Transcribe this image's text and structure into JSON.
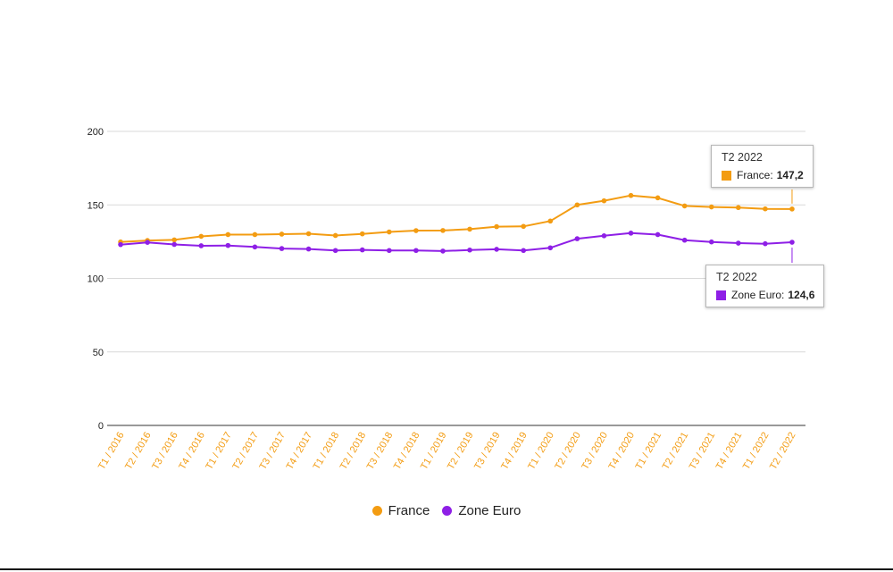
{
  "colors": {
    "france": "#f39c12",
    "zone_euro": "#8e1fe6",
    "grid": "#d9d9d9",
    "tick_label": "#f39c12"
  },
  "chart_data": {
    "type": "line",
    "categories": [
      "T1 / 2016",
      "T2 / 2016",
      "T3 / 2016",
      "T4 / 2016",
      "T1 / 2017",
      "T2 / 2017",
      "T3 / 2017",
      "T4 / 2017",
      "T1 / 2018",
      "T2 / 2018",
      "T3 / 2018",
      "T4 / 2018",
      "T1 / 2019",
      "T2 / 2019",
      "T3 / 2019",
      "T4 / 2019",
      "T1 / 2020",
      "T2 / 2020",
      "T3 / 2020",
      "T4 / 2020",
      "T1 / 2021",
      "T2 / 2021",
      "T3 / 2021",
      "T4 / 2021",
      "T1 / 2022",
      "T2 / 2022"
    ],
    "series": [
      {
        "name": "France",
        "color": "#f39c12",
        "values": [
          124.8,
          125.8,
          126.2,
          128.6,
          129.8,
          129.8,
          130.1,
          130.4,
          129.2,
          130.3,
          131.6,
          132.5,
          132.6,
          133.5,
          135.2,
          135.4,
          139.0,
          150.0,
          152.8,
          156.4,
          154.8,
          149.3,
          148.6,
          148.2,
          147.3,
          147.2
        ]
      },
      {
        "name": "Zone Euro",
        "color": "#8e1fe6",
        "values": [
          123.0,
          124.5,
          123.1,
          122.2,
          122.4,
          121.4,
          120.3,
          120.0,
          119.0,
          119.4,
          119.0,
          119.0,
          118.6,
          119.3,
          119.8,
          119.0,
          120.8,
          127.0,
          129.0,
          130.8,
          129.8,
          126.0,
          124.8,
          124.0,
          123.6,
          124.6
        ]
      }
    ],
    "yticks": [
      0,
      50,
      100,
      150,
      200
    ],
    "ytick_labels": [
      "0",
      "50",
      "100",
      "150",
      "200"
    ],
    "ylim": [
      0,
      200
    ],
    "grid": true,
    "legend": "bottom",
    "tooltips": [
      {
        "title": "T2 2022",
        "label": "France:",
        "value": "147,2",
        "series": 0,
        "index": 25
      },
      {
        "title": "T2 2022",
        "label": "Zone Euro:",
        "value": "124,6",
        "series": 1,
        "index": 25
      }
    ]
  }
}
